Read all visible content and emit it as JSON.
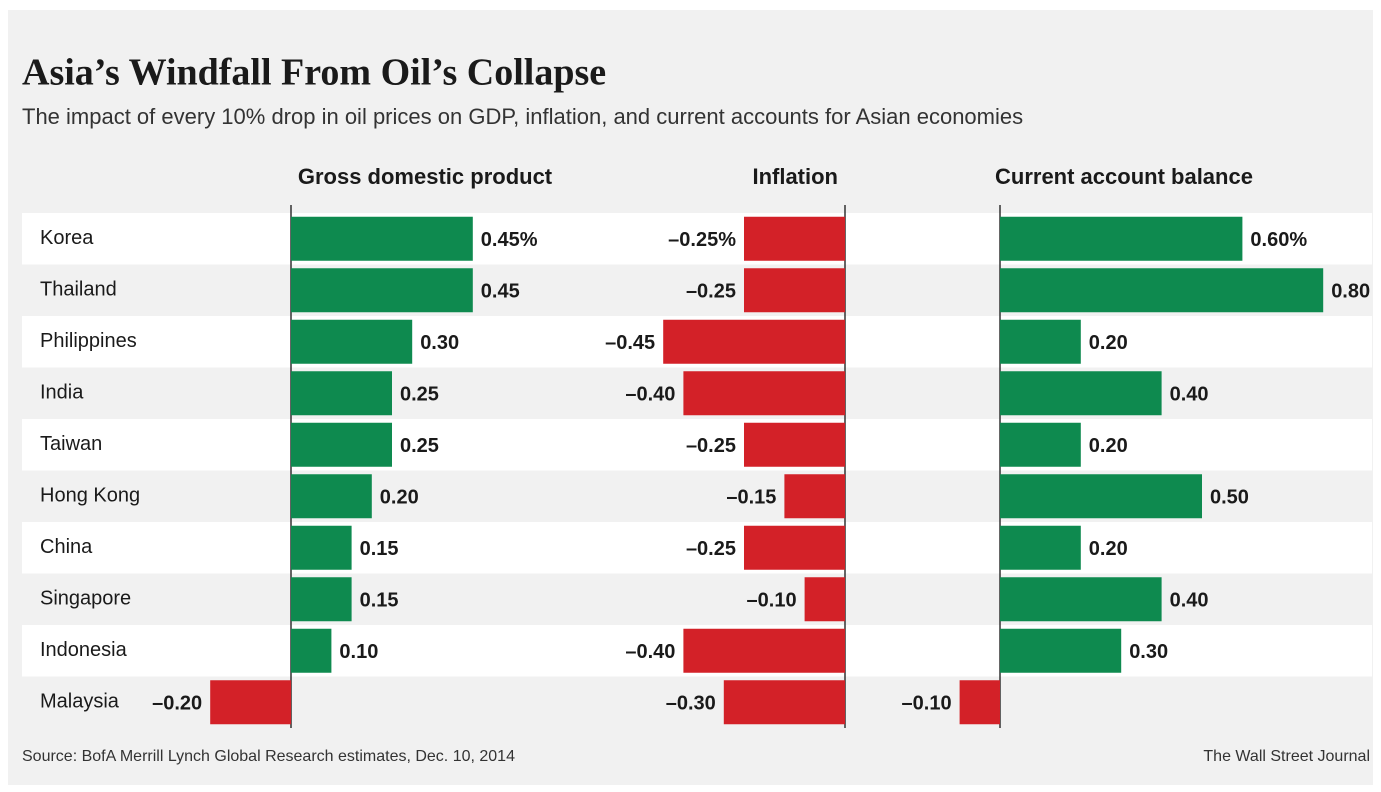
{
  "title": "Asia’s Windfall From Oil’s Collapse",
  "subtitle": "The impact of every 10% drop in oil prices on GDP, inflation, and current accounts for Asian economies",
  "source": "Source: BofA Merrill Lynch Global Research estimates, Dec. 10, 2014",
  "credit": "The Wall Street Journal",
  "chart_data": {
    "type": "bar",
    "orientation": "horizontal",
    "color": "#0e8a4f",
    "negative_color": "#d32128",
    "categories": [
      "Korea",
      "Thailand",
      "Philippines",
      "India",
      "Taiwan",
      "Hong Kong",
      "China",
      "Singapore",
      "Indonesia",
      "Malaysia"
    ],
    "series": [
      {
        "name": "Gross domestic product",
        "values": [
          0.45,
          0.45,
          0.3,
          0.25,
          0.25,
          0.2,
          0.15,
          0.15,
          0.1,
          -0.2
        ],
        "value_labels": [
          "0.45%",
          "0.45",
          "0.30",
          "0.25",
          "0.25",
          "0.20",
          "0.15",
          "0.15",
          "0.10",
          "–0.20"
        ]
      },
      {
        "name": "Inflation",
        "values": [
          -0.25,
          -0.25,
          -0.45,
          -0.4,
          -0.25,
          -0.15,
          -0.25,
          -0.1,
          -0.4,
          -0.3
        ],
        "value_labels": [
          "–0.25%",
          "–0.25",
          "–0.45",
          "–0.40",
          "–0.25",
          "–0.15",
          "–0.25",
          "–0.10",
          "–0.40",
          "–0.30"
        ]
      },
      {
        "name": "Current account balance",
        "values": [
          0.6,
          0.8,
          0.2,
          0.4,
          0.2,
          0.5,
          0.2,
          0.4,
          0.3,
          -0.1
        ],
        "value_labels": [
          "0.60%",
          "0.80",
          "0.20",
          "0.40",
          "0.20",
          "0.50",
          "0.20",
          "0.40",
          "0.30",
          "–0.10"
        ]
      }
    ]
  }
}
